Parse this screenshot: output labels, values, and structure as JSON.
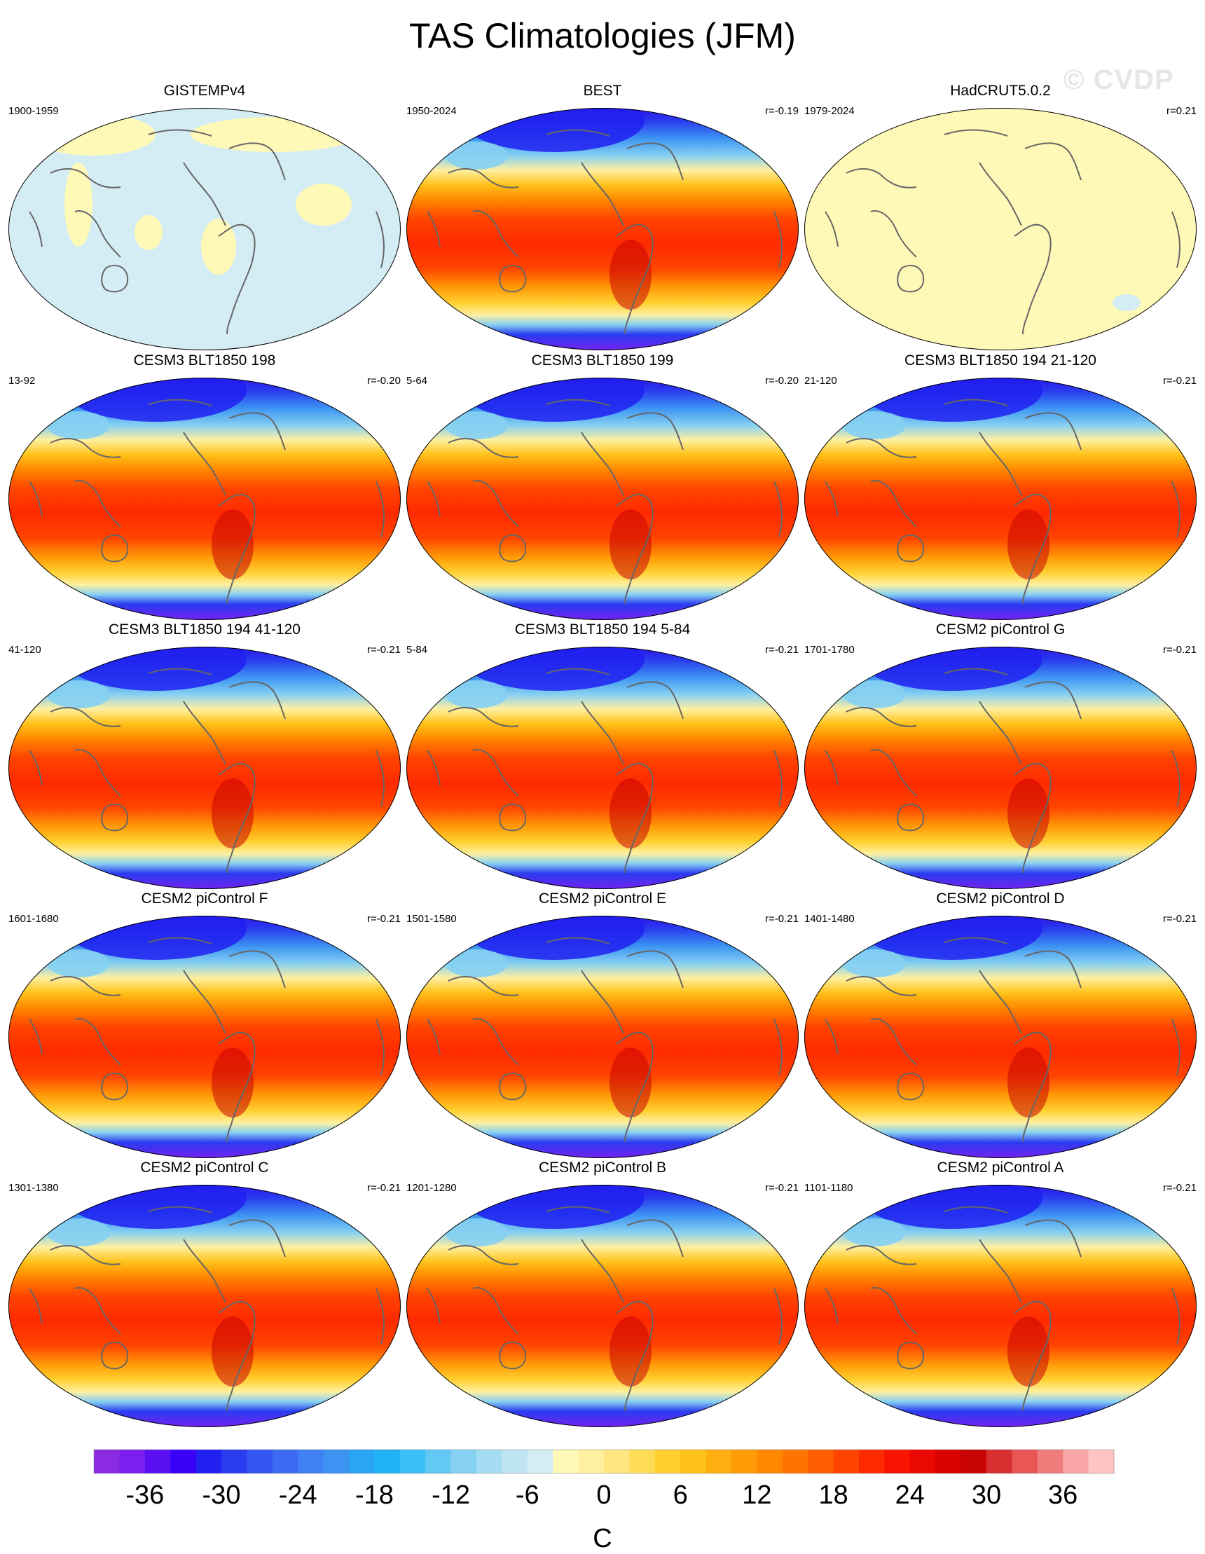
{
  "title": "TAS Climatologies (JFM)",
  "watermark": "© CVDP",
  "panels": [
    {
      "title": "GISTEMPv4",
      "years": "1900-1959",
      "r": "",
      "style": "obs-anom"
    },
    {
      "title": "BEST",
      "years": "1950-2024",
      "r": "r=-0.19",
      "style": "clim"
    },
    {
      "title": "HadCRUT5.0.2",
      "years": "1979-2024",
      "r": "r=0.21",
      "style": "obs-pale"
    },
    {
      "title": "CESM3 BLT1850 198",
      "years": "13-92",
      "r": "r=-0.20",
      "style": "clim"
    },
    {
      "title": "CESM3 BLT1850 199",
      "years": "5-64",
      "r": "r=-0.20",
      "style": "clim"
    },
    {
      "title": "CESM3 BLT1850 194 21-120",
      "years": "21-120",
      "r": "r=-0.21",
      "style": "clim"
    },
    {
      "title": "CESM3 BLT1850 194 41-120",
      "years": "41-120",
      "r": "r=-0.21",
      "style": "clim"
    },
    {
      "title": "CESM3 BLT1850 194 5-84",
      "years": "5-84",
      "r": "r=-0.21",
      "style": "clim"
    },
    {
      "title": "CESM2 piControl G",
      "years": "1701-1780",
      "r": "r=-0.21",
      "style": "clim"
    },
    {
      "title": "CESM2 piControl F",
      "years": "1601-1680",
      "r": "r=-0.21",
      "style": "clim"
    },
    {
      "title": "CESM2 piControl E",
      "years": "1501-1580",
      "r": "r=-0.21",
      "style": "clim"
    },
    {
      "title": "CESM2 piControl D",
      "years": "1401-1480",
      "r": "r=-0.21",
      "style": "clim"
    },
    {
      "title": "CESM2 piControl C",
      "years": "1301-1380",
      "r": "r=-0.21",
      "style": "clim"
    },
    {
      "title": "CESM2 piControl B",
      "years": "1201-1280",
      "r": "r=-0.21",
      "style": "clim"
    },
    {
      "title": "CESM2 piControl A",
      "years": "1101-1180",
      "r": "r=-0.21",
      "style": "clim"
    }
  ],
  "chart_data": {
    "type": "heatmap",
    "title": "TAS Climatologies (JFM)",
    "units": "C",
    "colorbar": {
      "levels": [
        -40,
        -38,
        -36,
        -34,
        -32,
        -30,
        -28,
        -26,
        -24,
        -22,
        -20,
        -18,
        -16,
        -14,
        -12,
        -10,
        -8,
        -6,
        -4,
        -2,
        0,
        2,
        4,
        6,
        8,
        10,
        12,
        14,
        16,
        18,
        20,
        22,
        24,
        26,
        28,
        30,
        32,
        34,
        36,
        38,
        40
      ],
      "tick_labels": [
        "-36",
        "-30",
        "-24",
        "-18",
        "-12",
        "-6",
        "0",
        "6",
        "12",
        "18",
        "24",
        "30",
        "36"
      ],
      "tick_values": [
        -36,
        -30,
        -24,
        -18,
        -12,
        -6,
        0,
        6,
        12,
        18,
        24,
        30,
        36
      ],
      "colors": [
        "#8a2be2",
        "#7b1ff0",
        "#5a10f0",
        "#3a00f8",
        "#2020f0",
        "#2a3cf0",
        "#3456f0",
        "#3c6af0",
        "#3f80f2",
        "#3c93f2",
        "#2aa4f4",
        "#20b4f6",
        "#3cc0f6",
        "#64c8f4",
        "#86d0f2",
        "#a4dcf2",
        "#bfe4f2",
        "#d4ecf4",
        "#fff9b8",
        "#fff0a0",
        "#ffe680",
        "#ffdc55",
        "#ffd030",
        "#ffc21a",
        "#ffb010",
        "#ff9c08",
        "#ff8800",
        "#ff7400",
        "#ff5e00",
        "#ff4400",
        "#ff2a00",
        "#f81400",
        "#ea0800",
        "#d80000",
        "#c80404",
        "#d83030",
        "#e85656",
        "#f07c7c",
        "#f8a6a6",
        "#ffc4c4"
      ]
    },
    "maps": [
      {
        "panel": "GISTEMPv4",
        "years": "1900-1959"
      },
      {
        "panel": "BEST",
        "years": "1950-2024",
        "r": -0.19
      },
      {
        "panel": "HadCRUT5.0.2",
        "years": "1979-2024",
        "r": 0.21
      },
      {
        "panel": "CESM3 BLT1850 198",
        "years": "13-92",
        "r": -0.2
      },
      {
        "panel": "CESM3 BLT1850 199",
        "years": "5-64",
        "r": -0.2
      },
      {
        "panel": "CESM3 BLT1850 194 21-120",
        "years": "21-120",
        "r": -0.21
      },
      {
        "panel": "CESM3 BLT1850 194 41-120",
        "years": "41-120",
        "r": -0.21
      },
      {
        "panel": "CESM3 BLT1850 194 5-84",
        "years": "5-84",
        "r": -0.21
      },
      {
        "panel": "CESM2 piControl G",
        "years": "1701-1780",
        "r": -0.21
      },
      {
        "panel": "CESM2 piControl F",
        "years": "1601-1680",
        "r": -0.21
      },
      {
        "panel": "CESM2 piControl E",
        "years": "1501-1580",
        "r": -0.21
      },
      {
        "panel": "CESM2 piControl D",
        "years": "1401-1480",
        "r": -0.21
      },
      {
        "panel": "CESM2 piControl C",
        "years": "1301-1380",
        "r": -0.21
      },
      {
        "panel": "CESM2 piControl B",
        "years": "1201-1280",
        "r": -0.21
      },
      {
        "panel": "CESM2 piControl A",
        "years": "1101-1180",
        "r": -0.21
      }
    ]
  }
}
